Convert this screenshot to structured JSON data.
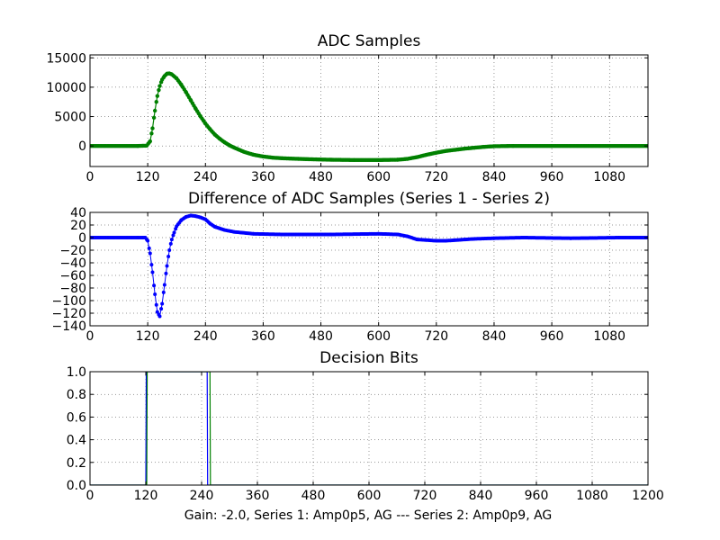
{
  "footer_text": "Gain: -2.0, Series 1: Amp0p5, AG --- Series 2: Amp0p9, AG",
  "colors": {
    "green": "#008000",
    "blue": "#0000ff",
    "background": "#ffffff",
    "grid": "#000000"
  },
  "chart_data": [
    {
      "type": "scatter",
      "title": "ADC Samples",
      "xlabel": "",
      "ylabel": "",
      "xlim": [
        0,
        1160
      ],
      "ylim": [
        -3500,
        15500
      ],
      "xticks": [
        0,
        120,
        240,
        360,
        480,
        600,
        720,
        840,
        960,
        1080
      ],
      "yticks": [
        0,
        5000,
        10000,
        15000
      ],
      "grid": true,
      "series": [
        {
          "color": "#008000",
          "x": [
            0,
            100,
            118,
            125,
            130,
            135,
            140,
            145,
            150,
            155,
            160,
            165,
            170,
            180,
            190,
            200,
            210,
            220,
            230,
            240,
            250,
            260,
            270,
            280,
            290,
            300,
            320,
            340,
            360,
            380,
            400,
            450,
            500,
            550,
            600,
            640,
            660,
            680,
            700,
            720,
            740,
            760,
            780,
            800,
            820,
            840,
            880,
            960,
            1080,
            1160
          ],
          "y": [
            0,
            0,
            50,
            800,
            3000,
            6000,
            8500,
            10200,
            11300,
            11900,
            12300,
            12350,
            12200,
            11500,
            10400,
            9100,
            7700,
            6300,
            5000,
            3800,
            2800,
            1900,
            1200,
            600,
            100,
            -300,
            -1000,
            -1500,
            -1800,
            -2000,
            -2100,
            -2250,
            -2350,
            -2400,
            -2400,
            -2350,
            -2200,
            -1900,
            -1500,
            -1150,
            -850,
            -650,
            -450,
            -300,
            -150,
            -50,
            0,
            0,
            0,
            0
          ]
        }
      ]
    },
    {
      "type": "line",
      "title": "Difference of ADC Samples (Series 1 - Series 2)",
      "xlabel": "",
      "ylabel": "",
      "xlim": [
        0,
        1160
      ],
      "ylim": [
        -140,
        40
      ],
      "xticks": [
        0,
        120,
        240,
        360,
        480,
        600,
        720,
        840,
        960,
        1080
      ],
      "yticks": [
        -140,
        -120,
        -100,
        -80,
        -60,
        -40,
        -20,
        0,
        20,
        40
      ],
      "grid": true,
      "series": [
        {
          "color": "#0000ff",
          "x": [
            0,
            100,
            110,
            115,
            120,
            125,
            130,
            135,
            140,
            145,
            150,
            155,
            160,
            165,
            170,
            175,
            180,
            190,
            200,
            210,
            220,
            230,
            240,
            250,
            260,
            280,
            300,
            340,
            400,
            500,
            600,
            640,
            660,
            680,
            700,
            720,
            740,
            760,
            780,
            800,
            840,
            900,
            1000,
            1100,
            1160
          ],
          "y": [
            0,
            0,
            0,
            0,
            -5,
            -25,
            -55,
            -90,
            -118,
            -125,
            -105,
            -75,
            -45,
            -20,
            -3,
            8,
            18,
            28,
            33,
            35,
            34,
            32,
            29,
            22,
            17,
            12,
            9,
            6,
            5,
            5,
            6,
            5,
            2,
            -3,
            -4,
            -5,
            -5,
            -4,
            -3,
            -2,
            -1,
            0,
            -1,
            0,
            0
          ]
        }
      ]
    },
    {
      "type": "line",
      "title": "Decision Bits",
      "xlabel": "Gain: -2.0, Series 1: Amp0p5, AG --- Series 2: Amp0p9, AG",
      "ylabel": "",
      "xlim": [
        0,
        1200
      ],
      "ylim": [
        0,
        1
      ],
      "xticks": [
        0,
        120,
        240,
        360,
        480,
        600,
        720,
        840,
        960,
        1080,
        1200
      ],
      "yticks": [
        0.0,
        0.2,
        0.4,
        0.6,
        0.8,
        1.0
      ],
      "grid": true,
      "series": [
        {
          "color": "#0000ff",
          "x": [
            0,
            120,
            121,
            252,
            253,
            1200
          ],
          "y": [
            0,
            0,
            1,
            1,
            0,
            0
          ]
        },
        {
          "color": "#008000",
          "x": [
            0,
            122,
            123,
            258,
            259,
            1200
          ],
          "y": [
            0,
            0,
            1,
            1,
            0,
            0
          ]
        }
      ]
    }
  ]
}
